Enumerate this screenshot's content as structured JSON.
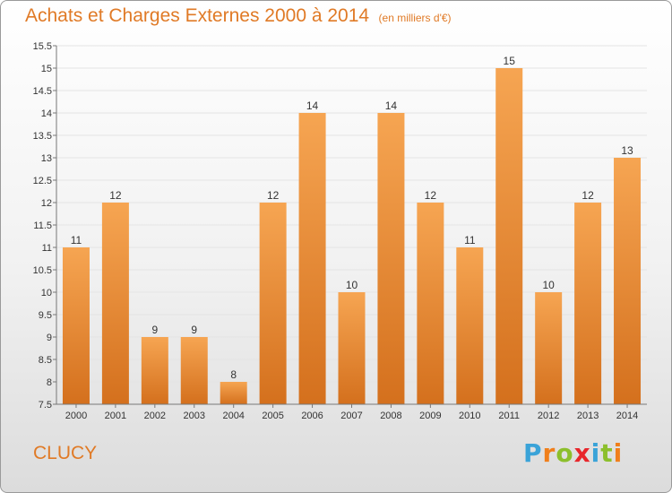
{
  "header": {
    "title": "Achats et Charges Externes 2000 à 2014",
    "unit": "(en milliers d'€)"
  },
  "commune": "CLUCY",
  "logo": {
    "letters": [
      {
        "ch": "P",
        "color": "#3aa3d8"
      },
      {
        "ch": "r",
        "color": "#f07f1b"
      },
      {
        "ch": "o",
        "color": "#8cbf2c"
      },
      {
        "ch": "x",
        "color": "#e8262b"
      },
      {
        "ch": "i",
        "color": "#3aa3d8"
      },
      {
        "ch": "t",
        "color": "#8cbf2c"
      },
      {
        "ch": "i",
        "color": "#f07f1b"
      }
    ]
  },
  "colors": {
    "bar_top": "#f6a552",
    "bar_bottom": "#d4701d",
    "axis_text": "#333333",
    "grid": "#e4e4e4"
  },
  "chart_data": {
    "type": "bar",
    "categories": [
      "2000",
      "2001",
      "2002",
      "2003",
      "2004",
      "2005",
      "2006",
      "2007",
      "2008",
      "2009",
      "2010",
      "2011",
      "2012",
      "2013",
      "2014"
    ],
    "values": [
      11,
      12,
      9,
      9,
      8,
      12,
      14,
      10,
      14,
      12,
      11,
      15,
      10,
      12,
      13
    ],
    "ylim": [
      7.5,
      15.5
    ],
    "yticks": [
      7.5,
      8,
      8.5,
      9,
      9.5,
      10,
      10.5,
      11,
      11.5,
      12,
      12.5,
      13,
      13.5,
      14,
      14.5,
      15,
      15.5
    ],
    "grid": true,
    "legend": "none"
  }
}
